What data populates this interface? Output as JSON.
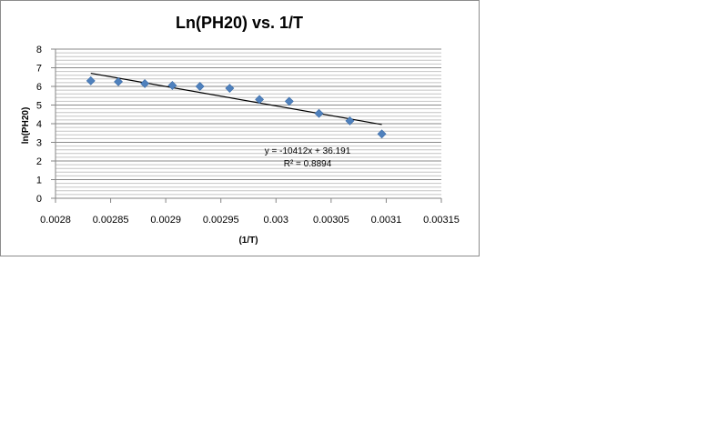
{
  "chart_data": {
    "type": "scatter",
    "title": "Ln(PH20) vs. 1/T",
    "xlabel": "(1/T)",
    "ylabel": "ln(PH20)",
    "xlim": [
      0.0028,
      0.00315
    ],
    "ylim": [
      0,
      8
    ],
    "xticks": [
      "0.0028",
      "0.00285",
      "0.0029",
      "0.00295",
      "0.003",
      "0.00305",
      "0.0031",
      "0.00315"
    ],
    "yticks": [
      "0",
      "1",
      "2",
      "3",
      "4",
      "5",
      "6",
      "7",
      "8"
    ],
    "grid": "horizontal",
    "legend": "none",
    "series": [
      {
        "color": "#4f81bd",
        "marker": "diamond",
        "points": [
          {
            "x": 0.002832,
            "y": 6.3
          },
          {
            "x": 0.002857,
            "y": 6.25
          },
          {
            "x": 0.002881,
            "y": 6.15
          },
          {
            "x": 0.002906,
            "y": 6.05
          },
          {
            "x": 0.002931,
            "y": 6.0
          },
          {
            "x": 0.002958,
            "y": 5.9
          },
          {
            "x": 0.002985,
            "y": 5.3
          },
          {
            "x": 0.003012,
            "y": 5.2
          },
          {
            "x": 0.003039,
            "y": 4.55
          },
          {
            "x": 0.003067,
            "y": 4.15
          },
          {
            "x": 0.003096,
            "y": 3.45
          }
        ]
      }
    ],
    "trendline": {
      "type": "linear",
      "slope": -10412,
      "intercept": 36.191,
      "equation": "y = -10412x + 36.191",
      "r2_label": "R² = 0.8894",
      "color": "#000000"
    }
  }
}
